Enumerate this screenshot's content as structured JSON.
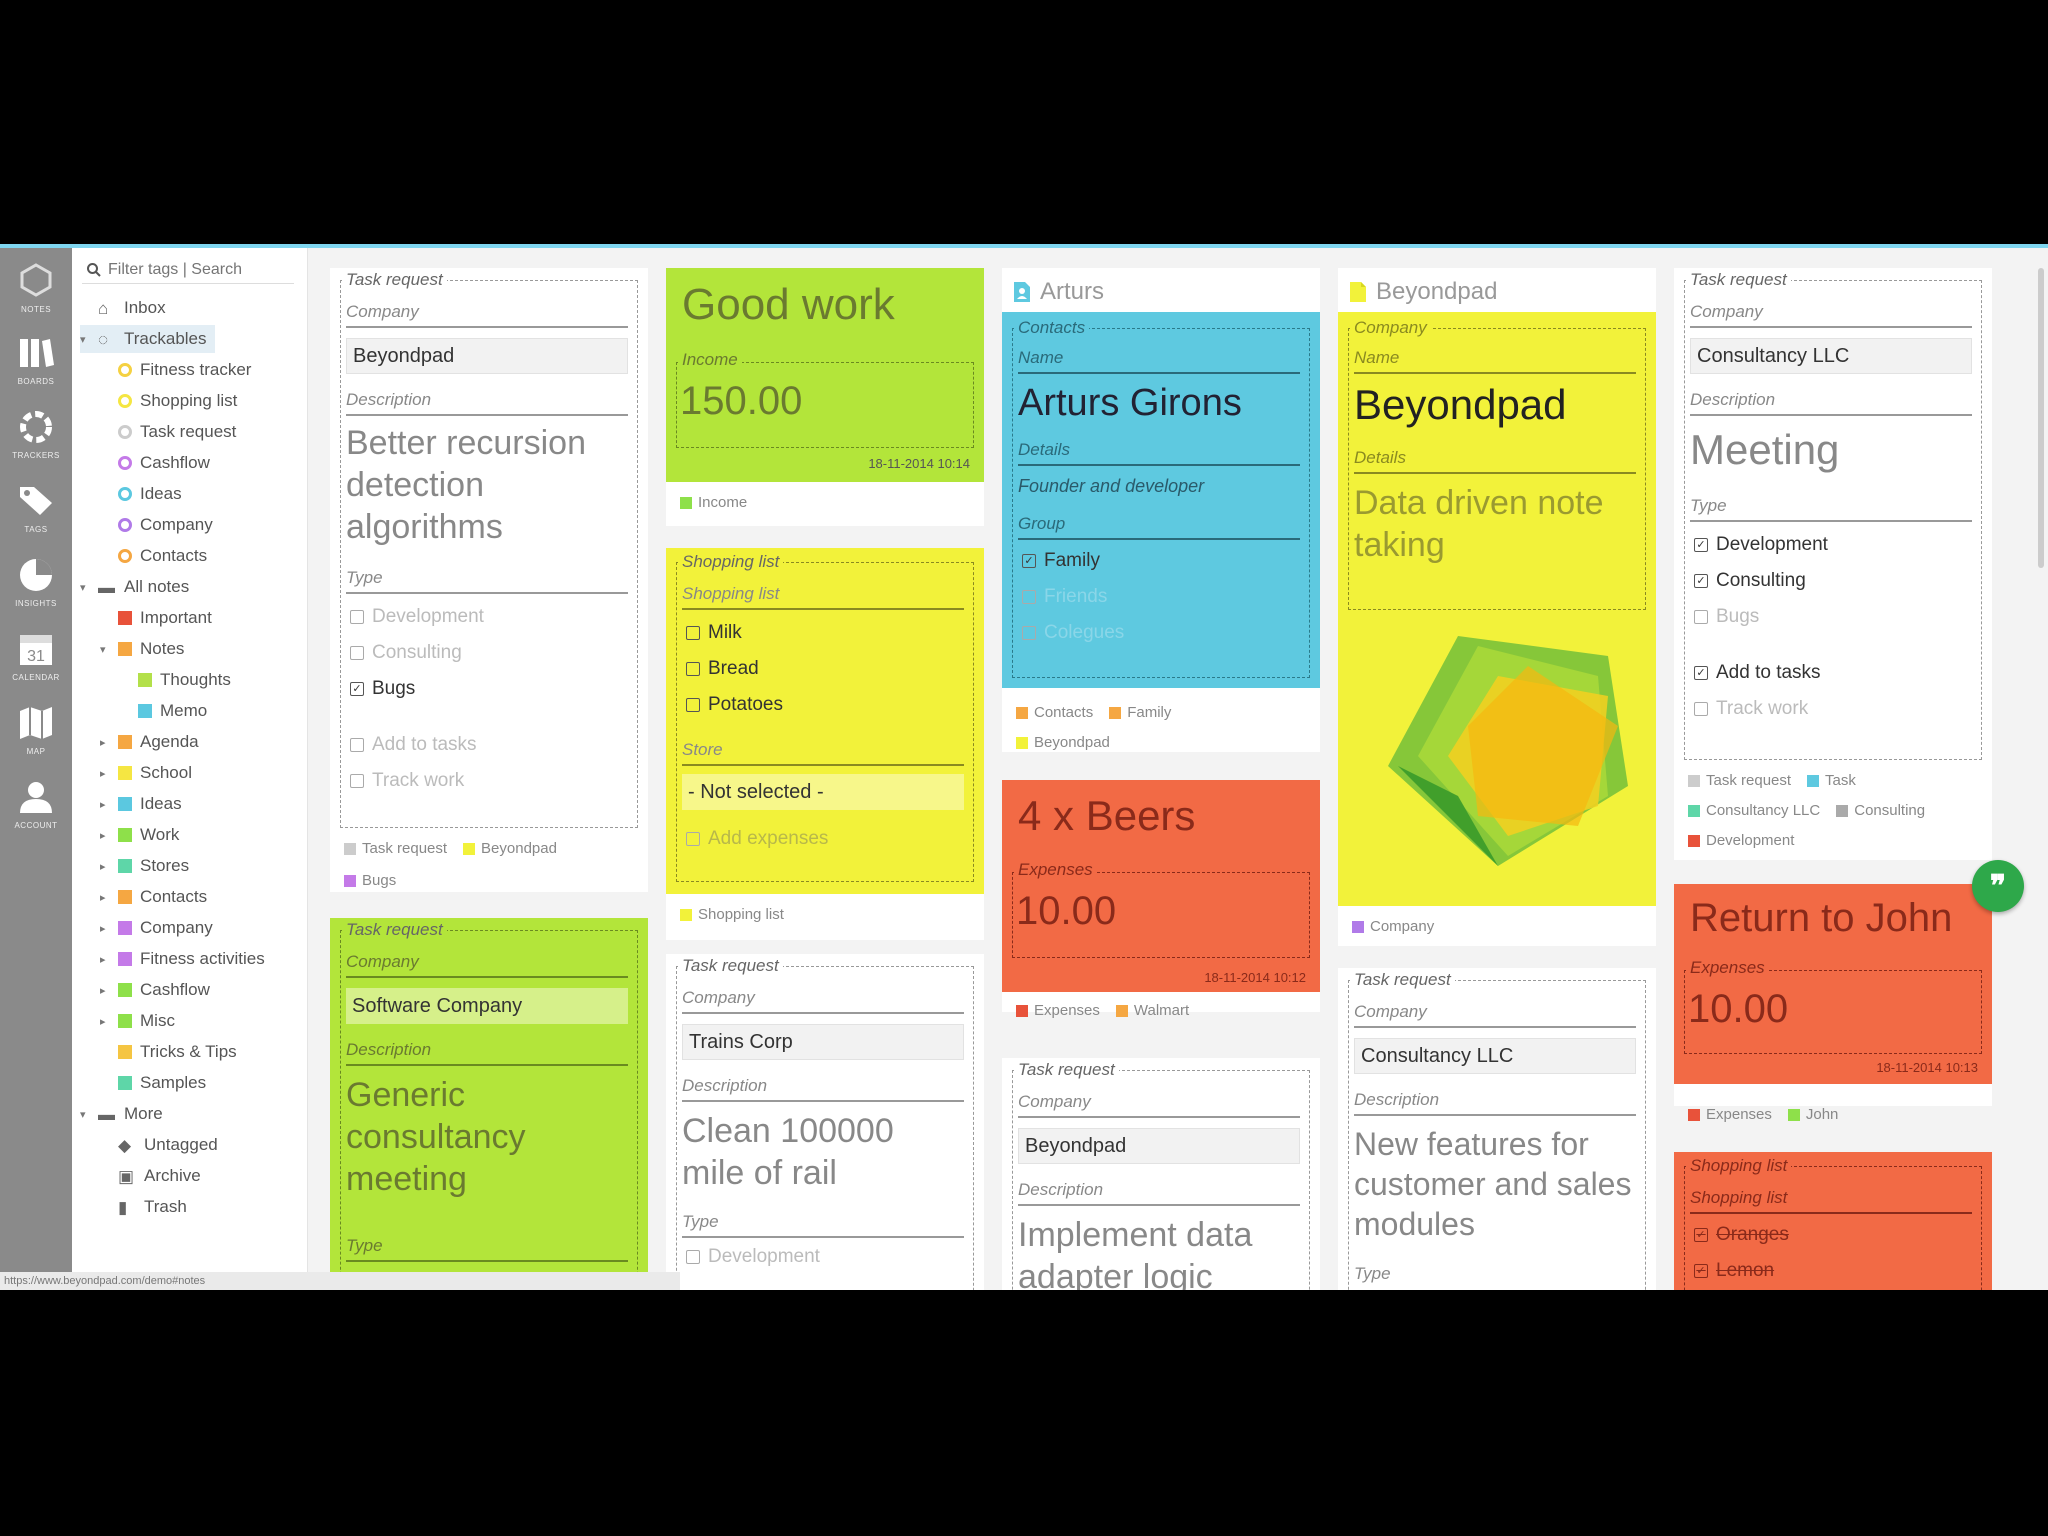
{
  "rail": [
    {
      "label": "NOTES",
      "icon": "logo-icon"
    },
    {
      "label": "BOARDS",
      "icon": "boards-icon"
    },
    {
      "label": "TRACKERS",
      "icon": "trackers-icon"
    },
    {
      "label": "TAGS",
      "icon": "tags-icon"
    },
    {
      "label": "INSIGHTS",
      "icon": "insights-icon"
    },
    {
      "label": "CALENDAR",
      "icon": "calendar-icon",
      "day": "31"
    },
    {
      "label": "MAP",
      "icon": "map-icon"
    },
    {
      "label": "ACCOUNT",
      "icon": "account-icon"
    }
  ],
  "search": {
    "placeholder": "Filter tags | Search"
  },
  "sidebar": [
    {
      "label": "Inbox",
      "icon": "inbox-icon"
    },
    {
      "label": "Trackables",
      "icon": "tracker-icon"
    },
    {
      "label": "Fitness tracker",
      "color": "#f5d142"
    },
    {
      "label": "Shopping list",
      "color": "#f5e642"
    },
    {
      "label": "Task request",
      "color": "#cccccc"
    },
    {
      "label": "Cashflow",
      "color": "#c47ae8"
    },
    {
      "label": "Ideas",
      "color": "#5bc8e0"
    },
    {
      "label": "Company",
      "color": "#b07ae8"
    },
    {
      "label": "Contacts",
      "color": "#f5a742"
    },
    {
      "label": "All notes",
      "icon": "folder-icon"
    },
    {
      "label": "Important",
      "color": "#e8523a"
    },
    {
      "label": "Notes",
      "color": "#f5a742"
    },
    {
      "label": "Thoughts",
      "color": "#b3e04a"
    },
    {
      "label": "Memo",
      "color": "#5bc8e0"
    },
    {
      "label": "Agenda",
      "color": "#f5a742"
    },
    {
      "label": "School",
      "color": "#f5e642"
    },
    {
      "label": "Ideas",
      "color": "#5bc8e0"
    },
    {
      "label": "Work",
      "color": "#8ee04a"
    },
    {
      "label": "Stores",
      "color": "#5ed6a8"
    },
    {
      "label": "Contacts",
      "color": "#f5a742"
    },
    {
      "label": "Company",
      "color": "#c47ae8"
    },
    {
      "label": "Fitness activities",
      "color": "#c47ae8"
    },
    {
      "label": "Cashflow",
      "color": "#8ee04a"
    },
    {
      "label": "Misc",
      "color": "#8ee04a"
    },
    {
      "label": "Tricks & Tips",
      "color": "#f5c542"
    },
    {
      "label": "Samples",
      "color": "#5ed6a8"
    },
    {
      "label": "More",
      "icon": "folder-icon"
    },
    {
      "label": "Untagged",
      "icon": "tag-icon"
    },
    {
      "label": "Archive",
      "icon": "archive-icon"
    },
    {
      "label": "Trash",
      "icon": "trash-icon"
    }
  ],
  "colors": {
    "green": "#b3e53a",
    "yellow": "#f2f23a",
    "cyan": "#5ec9e0",
    "red": "#f26a45",
    "white": "#ffffff"
  },
  "cards": {
    "c1": {
      "legend": "Task request",
      "company_label": "Company",
      "company": "Beyondpad",
      "desc_label": "Description",
      "desc": "Better recursion detection algorithms",
      "type_label": "Type",
      "checks": [
        "Development",
        "Consulting",
        "Bugs"
      ],
      "checks2": [
        "Add to tasks",
        "Track work"
      ],
      "tags": [
        "Task request",
        "Beyondpad",
        "Bugs"
      ]
    },
    "c2": {
      "title": "Good work",
      "field_label": "Income",
      "value": "150.00",
      "date": "18-11-2014 10:14",
      "tags": [
        "Income"
      ]
    },
    "c3": {
      "legend": "Shopping list",
      "list_label": "Shopping list",
      "items": [
        "Milk",
        "Bread",
        "Potatoes"
      ],
      "store_label": "Store",
      "store_value": "- Not selected -",
      "add_expenses": "Add expenses",
      "tags": [
        "Shopping list"
      ]
    },
    "c4": {
      "head": "Arturs",
      "legend": "Contacts",
      "name_label": "Name",
      "name": "Arturs Girons",
      "details_label": "Details",
      "details": "Founder and developer",
      "group_label": "Group",
      "groups": [
        "Family",
        "Friends",
        "Colegues"
      ],
      "tags": [
        "Contacts",
        "Family",
        "Beyondpad"
      ]
    },
    "c5": {
      "head": "Beyondpad",
      "legend": "Company",
      "name_label": "Name",
      "name": "Beyondpad",
      "details_label": "Details",
      "details": "Data driven note taking",
      "tags": [
        "Company"
      ]
    },
    "c6": {
      "legend": "Task request",
      "company_label": "Company",
      "company": "Consultancy LLC",
      "desc_label": "Description",
      "desc": "Meeting",
      "type_label": "Type",
      "checks": [
        "Development",
        "Consulting",
        "Bugs"
      ],
      "checks2": [
        "Add to tasks",
        "Track work"
      ],
      "tags": [
        "Task request",
        "Task",
        "Consultancy LLC",
        "Consulting",
        "Development"
      ]
    },
    "c7": {
      "legend": "Task request",
      "company_label": "Company",
      "company": "Software Company",
      "desc_label": "Description",
      "desc": "Generic consultancy meeting",
      "type_label": "Type"
    },
    "c8": {
      "legend": "Task request",
      "company_label": "Company",
      "company": "Trains Corp",
      "desc_label": "Description",
      "desc": "Clean 100000 mile of rail",
      "type_label": "Type",
      "check": "Development"
    },
    "c9": {
      "title": "4 x Beers",
      "field_label": "Expenses",
      "value": "10.00",
      "date": "18-11-2014 10:12",
      "tags": [
        "Expenses",
        "Walmart"
      ]
    },
    "c10": {
      "legend": "Task request",
      "company_label": "Company",
      "company": "Beyondpad",
      "desc_label": "Description",
      "desc": "Implement data adapter logic"
    },
    "c11": {
      "legend": "Task request",
      "company_label": "Company",
      "company": "Consultancy LLC",
      "desc_label": "Description",
      "desc": "New features for customer and sales modules",
      "type_label": "Type"
    },
    "c12": {
      "title": "Return to John",
      "field_label": "Expenses",
      "value": "10.00",
      "date": "18-11-2014 10:13",
      "tags": [
        "Expenses",
        "John"
      ]
    },
    "c13": {
      "legend": "Shopping list",
      "list_label": "Shopping list",
      "items": [
        "Oranges",
        "Lemon"
      ]
    }
  },
  "status_url": "https://www.beyondpad.com/demo#notes"
}
